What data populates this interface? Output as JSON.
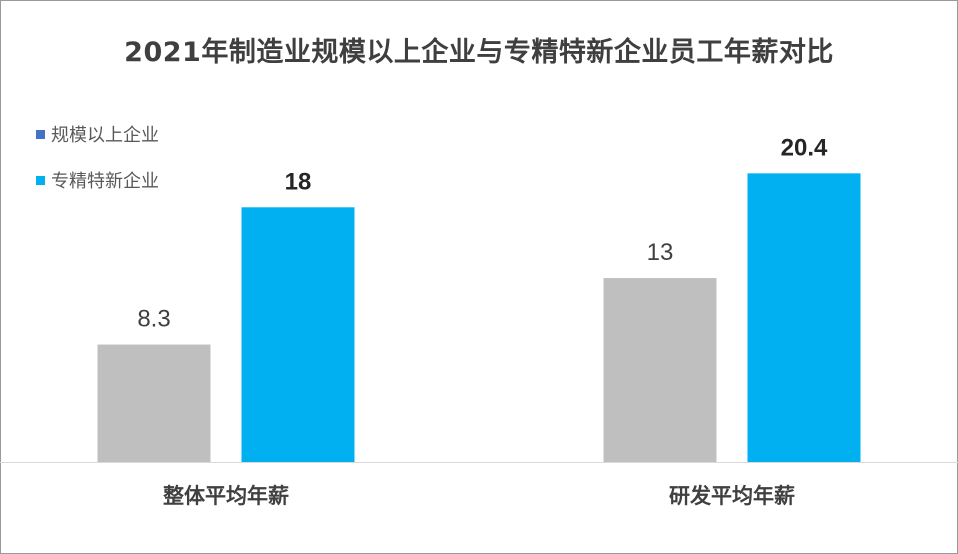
{
  "chart_data": {
    "type": "bar",
    "title": "2021年制造业规模以上企业与专精特新企业员工年薪对比",
    "categories": [
      "整体平均年薪",
      "研发平均年薪"
    ],
    "series": [
      {
        "name": "规模以上企业",
        "values": [
          8.3,
          13
        ],
        "color": "#bfbfbf",
        "legend_color": "#4472c4",
        "label_bold": false
      },
      {
        "name": "专精特新企业",
        "values": [
          18,
          20.4
        ],
        "color": "#00b0f0",
        "legend_color": "#00b0f0",
        "label_bold": true
      }
    ],
    "value_labels": [
      [
        "8.3",
        "13"
      ],
      [
        "18",
        "20.4"
      ]
    ],
    "ylim": [
      0,
      24
    ],
    "grid": false,
    "legend_position": "top-left"
  }
}
